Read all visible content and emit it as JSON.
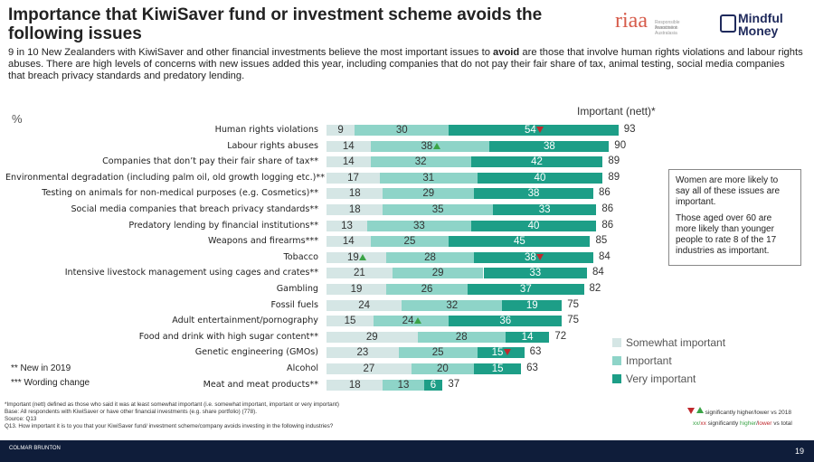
{
  "header": {
    "title": "Importance that KiwiSaver fund or investment scheme avoids the following issues",
    "intro_prefix": "9 in 10 New Zealanders with KiwiSaver and other financial investments believe the most important issues to ",
    "intro_bold": "avoid",
    "intro_suffix": " are those that involve human rights violations and labour rights abuses. There are high levels of concerns with new issues added this year, including companies that do not pay their fair share of tax, animal testing, social media companies that breach privacy standards and predatory lending."
  },
  "logos": {
    "riaa_text": "riaa",
    "riaa_sub1": "Responsible Investment",
    "riaa_sub2": "Association Australasia",
    "mm_line1": "Mindful",
    "mm_line2": "Money"
  },
  "chart_data": {
    "type": "bar",
    "orientation": "horizontal-stacked",
    "unit_label": "%",
    "total_header": "Important (nett)*",
    "categories": [
      "Human rights violations",
      "Labour rights abuses",
      "Companies that don’t pay their fair share of tax**",
      "Environmental degradation (including palm oil, old growth logging etc.)**",
      "Testing on animals for non-medical purposes (e.g. Cosmetics)**",
      "Social media companies that breach privacy standards**",
      "Predatory lending by financial institutions**",
      "Weapons and firearms***",
      "Tobacco",
      "Intensive livestock management using cages and crates**",
      "Gambling",
      "Fossil fuels",
      "Adult entertainment/pornography",
      "Food and drink with high sugar content**",
      "Genetic engineering (GMOs)",
      "Alcohol",
      "Meat and meat products**"
    ],
    "series": [
      {
        "name": "Somewhat important",
        "color": "#d5e6e5",
        "values": [
          9,
          14,
          14,
          17,
          18,
          18,
          13,
          14,
          19,
          21,
          19,
          24,
          15,
          29,
          23,
          27,
          18
        ]
      },
      {
        "name": "Important",
        "color": "#8ed4c8",
        "values": [
          30,
          38,
          32,
          31,
          29,
          35,
          33,
          25,
          28,
          29,
          26,
          32,
          24,
          28,
          25,
          20,
          13
        ]
      },
      {
        "name": "Very important",
        "color": "#1d9e87",
        "values": [
          54,
          38,
          42,
          40,
          38,
          33,
          40,
          45,
          38,
          33,
          37,
          19,
          36,
          14,
          15,
          15,
          6
        ]
      }
    ],
    "totals": [
      93,
      90,
      89,
      89,
      86,
      86,
      86,
      85,
      84,
      84,
      82,
      75,
      75,
      72,
      63,
      63,
      37
    ],
    "significance": [
      {
        "row": 0,
        "series": 2,
        "dir": "down"
      },
      {
        "row": 1,
        "series": 1,
        "dir": "up"
      },
      {
        "row": 8,
        "series": 0,
        "dir": "up"
      },
      {
        "row": 8,
        "series": 2,
        "dir": "down"
      },
      {
        "row": 12,
        "series": 1,
        "dir": "up"
      },
      {
        "row": 14,
        "series": 2,
        "dir": "down"
      }
    ],
    "xlim": [
      0,
      100
    ],
    "legend_position": "bottom-right"
  },
  "notes": {
    "p1": "Women are more likely to say all of these issues are important.",
    "p2": "Those aged over 60 are more likely than younger people to rate 8 of the 17 industries as important."
  },
  "markers": {
    "new_2019": "** New in 2019",
    "wording_change": "*** Wording change"
  },
  "footer": {
    "line1": "*Important (nett) defined as those who said it was at least somewhat important (i.e. somewhat important, important or very important)",
    "line2": "Base: All respondents with KiwiSaver or have other financial investments (e.g. share portfolio) (778).",
    "line3": "Source: Q13",
    "line4": "Q13. How important it is to you that your KiwiSaver fund/ investment scheme/company avoids investing in the following industries?",
    "key1_text": "significantly higher/lower vs 2018",
    "key2_prefix": "xx/",
    "key2_xx": "xx",
    "key2_mid": " significantly ",
    "key2_higher": "higher",
    "key2_slash": "/",
    "key2_lower": "lower",
    "key2_suffix": " vs total"
  },
  "bottom": {
    "brand": "COLMAR BRUNTON",
    "page_number": "19"
  },
  "colors": {
    "up": "#3aa346",
    "down": "#c0282d",
    "bar_bg": "#0f1d3a"
  }
}
